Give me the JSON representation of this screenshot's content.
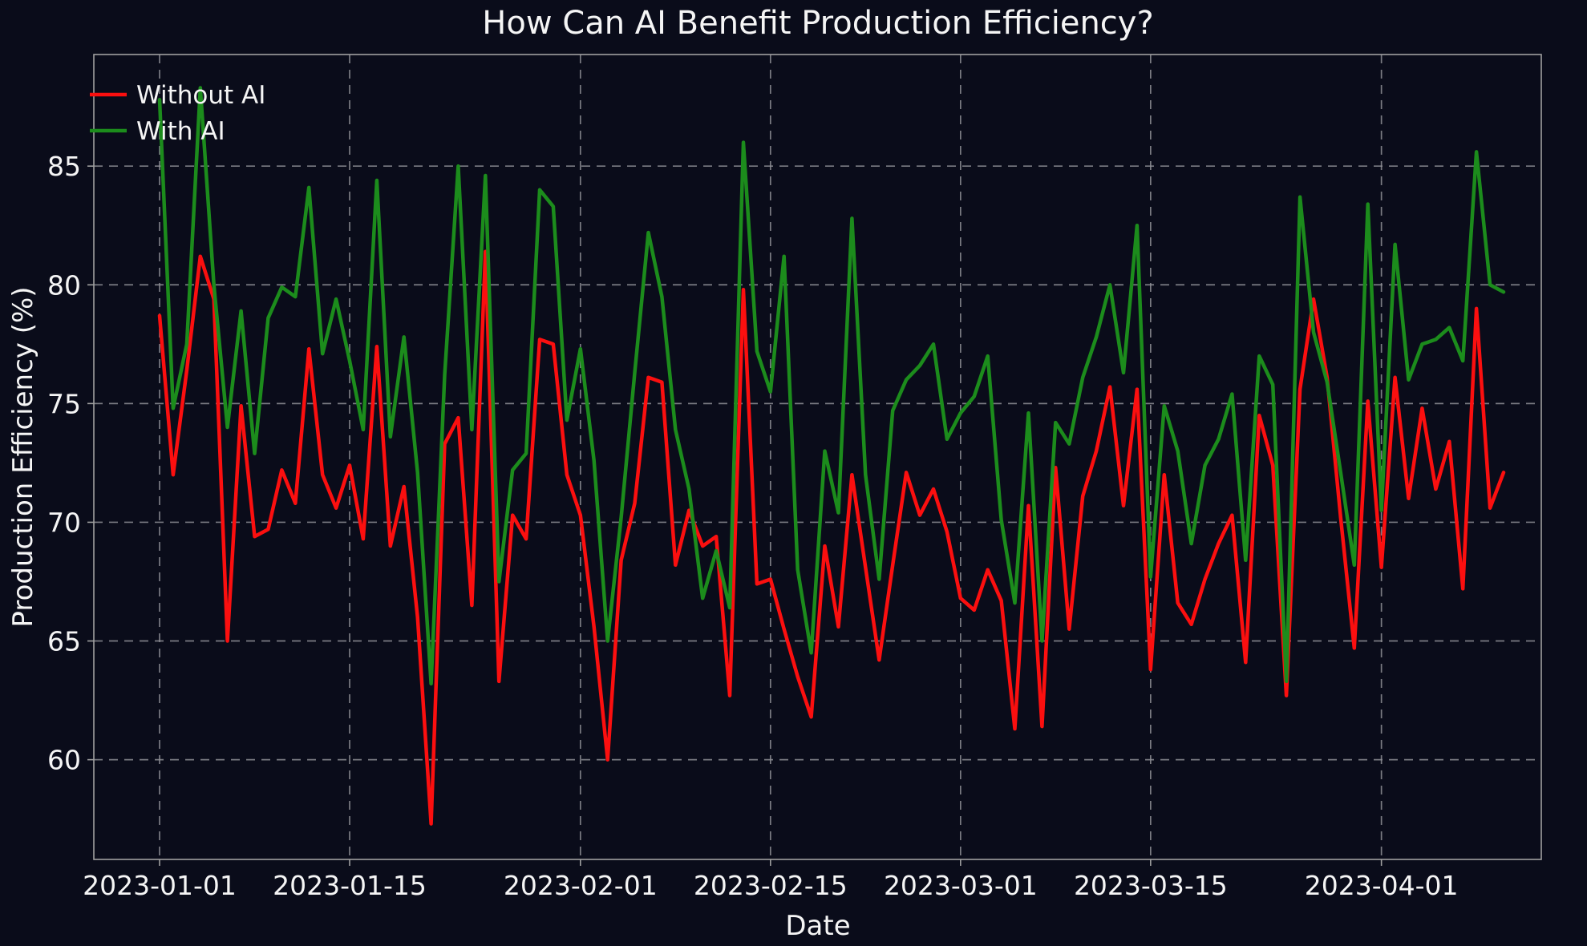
{
  "window": {
    "background_color": "#0a0c1a",
    "text_color": "#f5f5f5",
    "grid_color": "#8f9096",
    "spine_color": "#a0a0a0"
  },
  "chart_data": {
    "type": "line",
    "title": "How Can AI Benefit Production Efficiency?",
    "xlabel": "Date",
    "ylabel": "Production Efficiency (%)",
    "x_start_date": "2023-01-01",
    "x_days": 100,
    "x_tick_labels": [
      "2023-01-01",
      "2023-01-15",
      "2023-02-01",
      "2023-02-15",
      "2023-03-01",
      "2023-03-15",
      "2023-04-01"
    ],
    "x_tick_day_index": [
      0,
      14,
      31,
      45,
      59,
      73,
      90
    ],
    "y_ticks": [
      60,
      65,
      70,
      75,
      80,
      85
    ],
    "ylim": [
      55.8,
      89.7
    ],
    "grid": true,
    "grid_style": "dashed",
    "legend_position": "upper-left",
    "series": [
      {
        "name": "Without AI",
        "color": "#fb0f0f",
        "values": [
          78.7,
          72.0,
          76.4,
          81.2,
          79.4,
          65.0,
          74.9,
          69.4,
          69.7,
          72.2,
          70.8,
          77.3,
          72.0,
          70.6,
          72.4,
          69.3,
          77.4,
          69.0,
          71.5,
          66.0,
          57.3,
          73.3,
          74.4,
          66.5,
          81.4,
          63.3,
          70.3,
          69.3,
          77.7,
          77.5,
          72.0,
          70.3,
          65.6,
          60.0,
          68.4,
          70.8,
          76.1,
          75.9,
          68.2,
          70.5,
          69.0,
          69.4,
          62.7,
          79.8,
          67.4,
          67.6,
          65.5,
          63.5,
          61.8,
          69.0,
          65.6,
          72.0,
          68.1,
          64.2,
          68.2,
          72.1,
          70.3,
          71.4,
          69.6,
          66.8,
          66.3,
          68.0,
          66.7,
          61.3,
          70.7,
          61.4,
          72.3,
          65.5,
          71.1,
          73.0,
          75.7,
          70.7,
          75.6,
          63.8,
          72.0,
          66.6,
          65.7,
          67.6,
          69.1,
          70.3,
          64.1,
          74.5,
          72.4,
          62.7,
          75.6,
          79.4,
          76.1,
          70.2,
          64.7,
          75.1,
          68.1,
          76.1,
          71.0,
          74.8,
          71.4,
          73.4,
          67.2,
          79.0,
          70.6,
          72.1
        ]
      },
      {
        "name": "With AI",
        "color": "#1c8c1c",
        "values": [
          87.8,
          74.8,
          77.5,
          88.3,
          80.0,
          74.0,
          78.9,
          72.9,
          78.6,
          79.9,
          79.5,
          84.1,
          77.1,
          79.4,
          76.8,
          73.9,
          84.4,
          73.6,
          77.8,
          72.1,
          63.2,
          76.2,
          85.0,
          73.9,
          84.6,
          67.5,
          72.2,
          72.9,
          84.0,
          83.3,
          74.3,
          77.3,
          72.6,
          65.0,
          70.2,
          76.3,
          82.2,
          79.5,
          73.9,
          71.4,
          66.8,
          68.8,
          66.4,
          86.0,
          77.2,
          75.5,
          81.2,
          68.0,
          64.5,
          73.0,
          70.4,
          82.8,
          72.0,
          67.6,
          74.7,
          76.0,
          76.6,
          77.5,
          73.5,
          74.6,
          75.3,
          77.0,
          70.1,
          66.6,
          74.6,
          65.0,
          74.2,
          73.3,
          76.1,
          77.8,
          80.0,
          76.3,
          82.5,
          67.7,
          74.9,
          73.0,
          69.1,
          72.4,
          73.5,
          75.4,
          68.4,
          77.0,
          75.8,
          63.3,
          83.7,
          78.0,
          75.9,
          72.1,
          68.2,
          83.4,
          70.5,
          81.7,
          76.0,
          77.5,
          77.7,
          78.2,
          76.8,
          85.6,
          80.0,
          79.7
        ]
      }
    ]
  }
}
